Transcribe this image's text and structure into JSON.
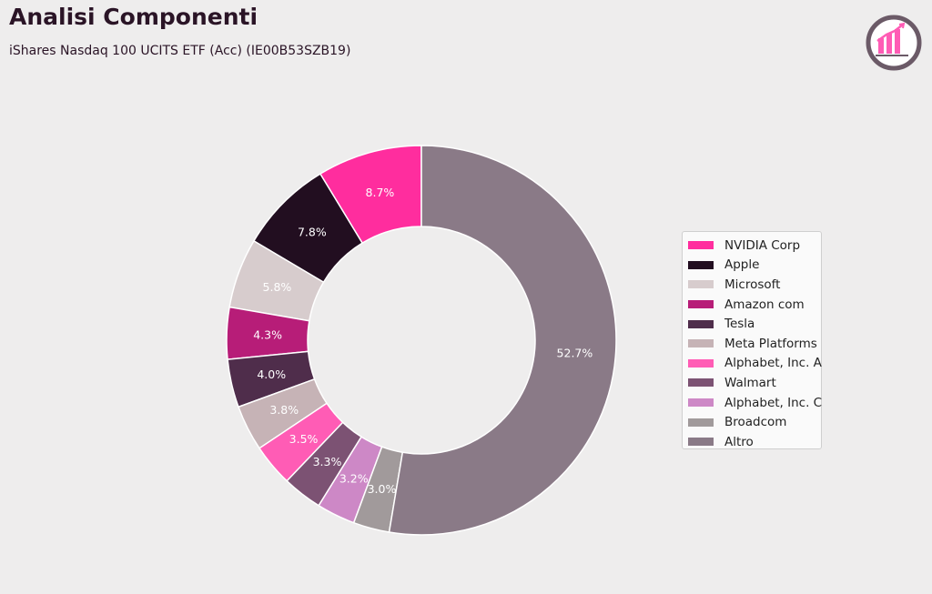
{
  "header": {
    "title": "Analisi Componenti",
    "subtitle": "iShares Nasdaq 100 UCITS ETF (Acc) (IE00B53SZB19)",
    "logo_icon": "bar-chart-growth-icon"
  },
  "chart_data": {
    "type": "pie",
    "donut": true,
    "legend_position": "right",
    "labels": [
      "NVIDIA Corp",
      "Apple",
      "Microsoft",
      "Amazon com",
      "Tesla",
      "Meta Platforms",
      "Alphabet, Inc. A",
      "Walmart",
      "Alphabet, Inc. C",
      "Broadcom",
      "Altro"
    ],
    "values": [
      8.7,
      7.8,
      5.8,
      4.3,
      4.0,
      3.8,
      3.5,
      3.3,
      3.2,
      3.0,
      52.7
    ],
    "value_labels": [
      "8.7%",
      "7.8%",
      "5.8%",
      "4.3%",
      "4.0%",
      "3.8%",
      "3.5%",
      "3.3%",
      "3.2%",
      "3.0%",
      "52.7%"
    ],
    "colors": [
      "#ff2d9e",
      "#220e20",
      "#d7cccd",
      "#b71d78",
      "#4f2d4b",
      "#c6b3b6",
      "#ff5cb5",
      "#7c5273",
      "#cd88c6",
      "#a19a9b",
      "#8a7a87"
    ],
    "label_colors": [
      "#ffffff",
      "#ffffff",
      "#ffffff",
      "#ffffff",
      "#ffffff",
      "#ffffff",
      "#ffffff",
      "#ffffff",
      "#ffffff",
      "#ffffff",
      "#ffffff"
    ],
    "direction": "counterclockwise",
    "start": "top"
  }
}
